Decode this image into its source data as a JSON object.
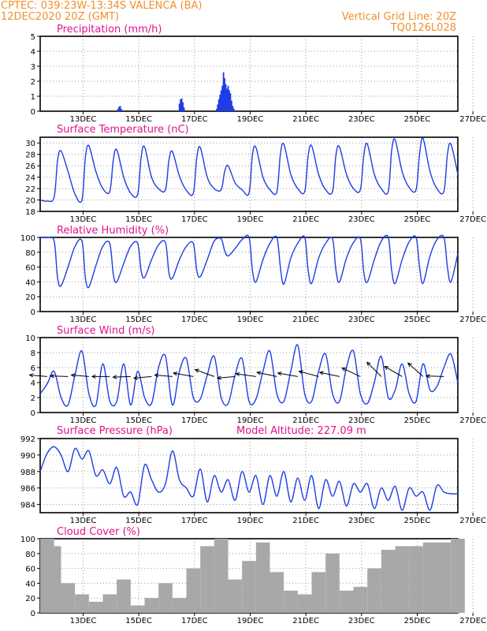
{
  "header": {
    "line1": "CPTEC:    039:23W-13:34S   VALENCA (BA)",
    "line2": "12DEC2020  20Z (GMT)",
    "right1": "Vertical Grid Line: 20Z",
    "right2": "TQ0126L028"
  },
  "colors": {
    "header": "#f0902a",
    "title": "#e0148c",
    "series": "#1e3ce6",
    "cloud": "#a8a8a8"
  },
  "chart_data": [
    {
      "type": "bar",
      "title": "Precipitation  (mm/h)",
      "x_ticks": [
        "13DEC",
        "15DEC",
        "17DEC",
        "19DEC",
        "21DEC",
        "23DEC",
        "25DEC",
        "27DEC"
      ],
      "ylim": [
        0,
        5
      ],
      "y_ticks": [
        0,
        1,
        2,
        3,
        4,
        5
      ],
      "grid": true,
      "x_hours": [
        67,
        68,
        69,
        70,
        120,
        121,
        122,
        123,
        124,
        152,
        153,
        154,
        155,
        156,
        157,
        158,
        159,
        160,
        161,
        162,
        163,
        164,
        165,
        166,
        167,
        168
      ],
      "values": [
        0.15,
        0.3,
        0.35,
        0.15,
        0.5,
        0.8,
        0.85,
        0.6,
        0.25,
        0.15,
        0.45,
        0.8,
        1.1,
        1.4,
        1.7,
        2.6,
        2.2,
        1.8,
        1.5,
        1.7,
        1.4,
        1.2,
        0.7,
        0.35,
        0.15,
        0.05
      ]
    },
    {
      "type": "line",
      "title": "Surface Temperature  (nC)",
      "x_ticks": [
        "13DEC",
        "15DEC",
        "17DEC",
        "19DEC",
        "21DEC",
        "23DEC",
        "25DEC",
        "27DEC"
      ],
      "ylim": [
        18,
        31
      ],
      "y_ticks": [
        18,
        20,
        22,
        24,
        26,
        28,
        30
      ],
      "grid": true,
      "x_hours": [
        0,
        6,
        12,
        15,
        18,
        24,
        30,
        36,
        39,
        42,
        48,
        54,
        60,
        63,
        66,
        72,
        78,
        84,
        87,
        90,
        96,
        102,
        108,
        111,
        114,
        120,
        126,
        132,
        135,
        138,
        144,
        150,
        156,
        159,
        162,
        168,
        174,
        180,
        183,
        186,
        192,
        198,
        204,
        207,
        210,
        216,
        222,
        228,
        231,
        234,
        240,
        246,
        252,
        255,
        258,
        264,
        270,
        276,
        279,
        282,
        288,
        294,
        300,
        303,
        306,
        312,
        318,
        324,
        327,
        330,
        336,
        342,
        348,
        351,
        354,
        360
      ],
      "values": [
        20,
        19.8,
        20.5,
        27,
        28.6,
        25,
        21,
        20,
        27.5,
        29.5,
        25,
        22,
        21.5,
        27,
        28.8,
        24,
        21.2,
        21,
        27.5,
        29.3,
        24,
        22,
        21.8,
        27,
        28.5,
        24.2,
        21.7,
        21.2,
        27.5,
        29.2,
        24,
        22,
        21.8,
        25,
        26,
        23,
        21.8,
        21.2,
        28,
        29.2,
        24,
        21.8,
        21.4,
        28,
        29.8,
        24.5,
        22,
        21.5,
        27.8,
        29.5,
        24.5,
        21.8,
        21.5,
        28,
        29.3,
        24.5,
        22,
        21.8,
        28,
        29.8,
        24.5,
        22,
        21.5,
        28.8,
        30.5,
        25,
        22.2,
        21.8,
        28,
        30.8,
        25,
        22,
        21.5,
        28,
        29.8,
        24.5
      ]
    },
    {
      "type": "line",
      "title": "Relative Humidity  (%)",
      "x_ticks": [
        "13DEC",
        "15DEC",
        "17DEC",
        "19DEC",
        "21DEC",
        "23DEC",
        "25DEC",
        "27DEC"
      ],
      "ylim": [
        0,
        100
      ],
      "y_ticks": [
        0,
        20,
        40,
        60,
        80,
        100
      ],
      "grid": true,
      "x_hours": [
        0,
        6,
        12,
        15,
        18,
        24,
        30,
        36,
        39,
        42,
        48,
        54,
        60,
        63,
        66,
        72,
        78,
        84,
        87,
        90,
        96,
        102,
        108,
        111,
        114,
        120,
        126,
        132,
        135,
        138,
        144,
        150,
        156,
        159,
        162,
        168,
        174,
        180,
        183,
        186,
        192,
        198,
        204,
        207,
        210,
        216,
        222,
        228,
        231,
        234,
        240,
        246,
        252,
        255,
        258,
        264,
        270,
        276,
        279,
        282,
        288,
        294,
        300,
        303,
        306,
        312,
        318,
        324,
        327,
        330,
        336,
        342,
        348,
        351,
        354,
        360
      ],
      "values": [
        100,
        100,
        95,
        45,
        35,
        60,
        88,
        95,
        45,
        33,
        62,
        88,
        92,
        50,
        40,
        65,
        88,
        92,
        55,
        46,
        70,
        90,
        93,
        52,
        45,
        70,
        88,
        92,
        55,
        47,
        70,
        95,
        98,
        82,
        75,
        85,
        97,
        100,
        55,
        40,
        70,
        92,
        100,
        60,
        37,
        72,
        92,
        100,
        55,
        38,
        72,
        92,
        98,
        55,
        40,
        72,
        93,
        98,
        52,
        40,
        70,
        95,
        100,
        55,
        38,
        70,
        94,
        100,
        60,
        38,
        75,
        97,
        100,
        60,
        40,
        78
      ]
    },
    {
      "type": "line",
      "title": "Surface Wind  (m/s)",
      "x_ticks": [
        "13DEC",
        "15DEC",
        "17DEC",
        "19DEC",
        "21DEC",
        "23DEC",
        "25DEC",
        "27DEC"
      ],
      "ylim": [
        0,
        10
      ],
      "y_ticks": [
        0,
        2,
        4,
        6,
        8,
        10
      ],
      "grid": true,
      "x_hours": [
        0,
        6,
        12,
        18,
        24,
        30,
        36,
        42,
        48,
        54,
        60,
        66,
        72,
        78,
        84,
        90,
        96,
        102,
        108,
        114,
        120,
        126,
        132,
        138,
        144,
        150,
        156,
        162,
        168,
        174,
        180,
        186,
        192,
        198,
        204,
        210,
        216,
        222,
        228,
        234,
        240,
        246,
        252,
        258,
        264,
        270,
        276,
        282,
        288,
        294,
        300,
        306,
        312,
        318,
        324,
        330,
        336,
        342,
        348,
        354,
        360
      ],
      "values": [
        2.5,
        3.8,
        5.5,
        2,
        1,
        5,
        8.2,
        2.5,
        1,
        6.5,
        1.5,
        1.5,
        6.5,
        1,
        5.5,
        2,
        1.2,
        6,
        7.5,
        1,
        5.5,
        7.2,
        2,
        1.8,
        5,
        7.5,
        2,
        1.2,
        5,
        7.2,
        1.5,
        1.8,
        5.5,
        8.2,
        2.5,
        1.5,
        5.5,
        9,
        2.5,
        1.5,
        5.5,
        7.8,
        2.5,
        1.5,
        6,
        8.2,
        2.5,
        1.2,
        4,
        7.5,
        2,
        3,
        6.5,
        2.5,
        1.5,
        6.5,
        3,
        3.5,
        6,
        7.8,
        4
      ],
      "arrows_label": "wind direction arrows",
      "arrows": [
        {
          "h": 6,
          "dir": 265,
          "len": 7
        },
        {
          "h": 24,
          "dir": 268,
          "len": 7
        },
        {
          "h": 42,
          "dir": 265,
          "len": 7
        },
        {
          "h": 60,
          "dir": 270,
          "len": 7
        },
        {
          "h": 78,
          "dir": 272,
          "len": 7
        },
        {
          "h": 96,
          "dir": 275,
          "len": 7
        },
        {
          "h": 114,
          "dir": 265,
          "len": 7
        },
        {
          "h": 132,
          "dir": 260,
          "len": 8
        },
        {
          "h": 150,
          "dir": 250,
          "len": 8
        },
        {
          "h": 168,
          "dir": 275,
          "len": 7
        },
        {
          "h": 186,
          "dir": 262,
          "len": 8
        },
        {
          "h": 204,
          "dir": 258,
          "len": 8
        },
        {
          "h": 222,
          "dir": 260,
          "len": 8
        },
        {
          "h": 240,
          "dir": 255,
          "len": 8
        },
        {
          "h": 258,
          "dir": 258,
          "len": 8
        },
        {
          "h": 276,
          "dir": 245,
          "len": 8
        },
        {
          "h": 294,
          "dir": 225,
          "len": 8
        },
        {
          "h": 312,
          "dir": 240,
          "len": 8
        },
        {
          "h": 330,
          "dir": 228,
          "len": 8
        },
        {
          "h": 348,
          "dir": 268,
          "len": 7
        }
      ]
    },
    {
      "type": "line",
      "title": "Surface Pressure  (hPa)",
      "annotation": "Model Altitude: 227.09  m",
      "x_ticks": [
        "13DEC",
        "15DEC",
        "17DEC",
        "19DEC",
        "21DEC",
        "23DEC",
        "25DEC",
        "27DEC"
      ],
      "ylim": [
        983,
        992
      ],
      "y_ticks": [
        984,
        986,
        988,
        990,
        992
      ],
      "grid": true,
      "x_hours": [
        0,
        6,
        12,
        18,
        24,
        30,
        36,
        42,
        48,
        54,
        60,
        66,
        72,
        78,
        84,
        90,
        96,
        102,
        108,
        114,
        120,
        126,
        132,
        138,
        144,
        150,
        156,
        162,
        168,
        174,
        180,
        186,
        192,
        198,
        204,
        210,
        216,
        222,
        228,
        234,
        240,
        246,
        252,
        258,
        264,
        270,
        276,
        282,
        288,
        294,
        300,
        306,
        312,
        318,
        324,
        330,
        336,
        342,
        348,
        354,
        360
      ],
      "values": [
        988,
        990.2,
        991,
        990,
        988,
        990.8,
        989.5,
        990.5,
        987.5,
        988.2,
        986.5,
        988.5,
        985,
        985.5,
        984,
        988.8,
        987,
        985.5,
        986.5,
        990.5,
        987,
        986,
        985,
        988.3,
        984.3,
        987.5,
        985.5,
        987,
        984.5,
        988,
        985.5,
        987.5,
        984,
        987.5,
        985,
        988,
        984.3,
        987.2,
        984.5,
        987.5,
        983.5,
        987,
        985,
        986.8,
        983.8,
        986.5,
        985.5,
        986.5,
        983.5,
        986,
        984.5,
        986.2,
        983.3,
        986,
        985,
        985.5,
        983.3,
        986.3,
        985.5,
        985.3,
        985.3
      ]
    },
    {
      "type": "bar",
      "title": "Cloud Cover  (%)",
      "x_ticks": [
        "13DEC",
        "15DEC",
        "17DEC",
        "19DEC",
        "21DEC",
        "23DEC",
        "25DEC",
        "27DEC"
      ],
      "ylim": [
        0,
        100
      ],
      "y_ticks": [
        0,
        20,
        40,
        60,
        80,
        100
      ],
      "grid": true,
      "x_hours": [
        0,
        12,
        24,
        36,
        48,
        60,
        72,
        84,
        96,
        108,
        120,
        132,
        144,
        156,
        168,
        180,
        192,
        204,
        216,
        228,
        240,
        252,
        264,
        276,
        288,
        300,
        312,
        324,
        336,
        348,
        360
      ],
      "values": [
        100,
        90,
        40,
        25,
        15,
        25,
        45,
        10,
        20,
        40,
        20,
        60,
        90,
        100,
        45,
        70,
        95,
        55,
        30,
        25,
        55,
        80,
        30,
        35,
        60,
        85,
        90,
        90,
        95,
        95,
        100
      ]
    }
  ]
}
